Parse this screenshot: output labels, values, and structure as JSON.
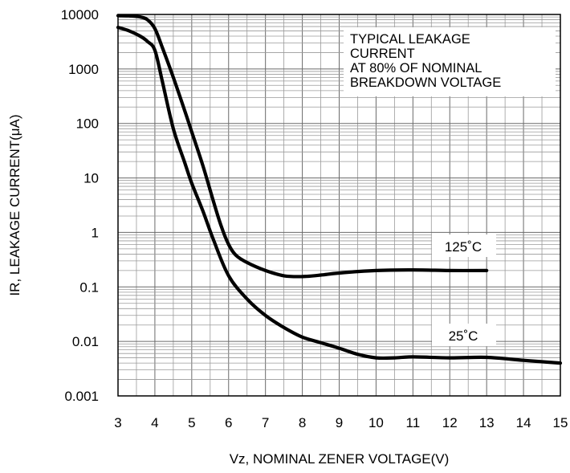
{
  "chart_data": {
    "type": "line",
    "title": "",
    "xlabel": "Vz, NOMINAL ZENER VOLTAGE(V)",
    "ylabel": "IR, LEAKAGE CURRENT(μA)",
    "xlim": [
      3,
      15
    ],
    "ylim": [
      0.001,
      10000
    ],
    "y_scale": "log",
    "grid": true,
    "x_tick_labels": [
      "3",
      "4",
      "5",
      "6",
      "7",
      "8",
      "9",
      "10",
      "11",
      "12",
      "13",
      "14",
      "15"
    ],
    "y_tick_labels": [
      "0.001",
      "0.01",
      "0.1",
      "1",
      "10",
      "100",
      "1000",
      "10000"
    ],
    "annotation": [
      "TYPICAL LEAKAGE",
      "CURRENT",
      "AT 80% OF NOMINAL",
      "BREAKDOWN VOLTAGE"
    ],
    "series": [
      {
        "name": "125˚C",
        "x": [
          3,
          3.3,
          3.6,
          3.8,
          4.0,
          4.2,
          4.5,
          4.8,
          5.0,
          5.3,
          5.6,
          5.8,
          6.0,
          6.2,
          6.5,
          7.0,
          7.5,
          8.0,
          8.5,
          9.0,
          10.0,
          11.0,
          12.0,
          13.0
        ],
        "y": [
          9500,
          9400,
          9000,
          8000,
          5500,
          2500,
          700,
          180,
          70,
          17,
          3.5,
          1.3,
          0.6,
          0.38,
          0.28,
          0.2,
          0.16,
          0.155,
          0.165,
          0.18,
          0.2,
          0.205,
          0.2,
          0.2
        ]
      },
      {
        "name": "25˚C",
        "x": [
          3,
          3.3,
          3.6,
          3.8,
          4.0,
          4.2,
          4.5,
          4.8,
          5.0,
          5.3,
          5.6,
          6.0,
          6.5,
          7.0,
          7.5,
          8.0,
          8.5,
          9.0,
          9.5,
          10.0,
          10.5,
          11.0,
          12.0,
          13.0,
          14.0,
          15.0
        ],
        "y": [
          5800,
          5000,
          4000,
          3200,
          2200,
          600,
          80,
          20,
          8,
          2.5,
          0.7,
          0.16,
          0.06,
          0.03,
          0.018,
          0.012,
          0.0095,
          0.0075,
          0.0058,
          0.005,
          0.005,
          0.0052,
          0.005,
          0.0051,
          0.0045,
          0.004
        ]
      }
    ]
  }
}
